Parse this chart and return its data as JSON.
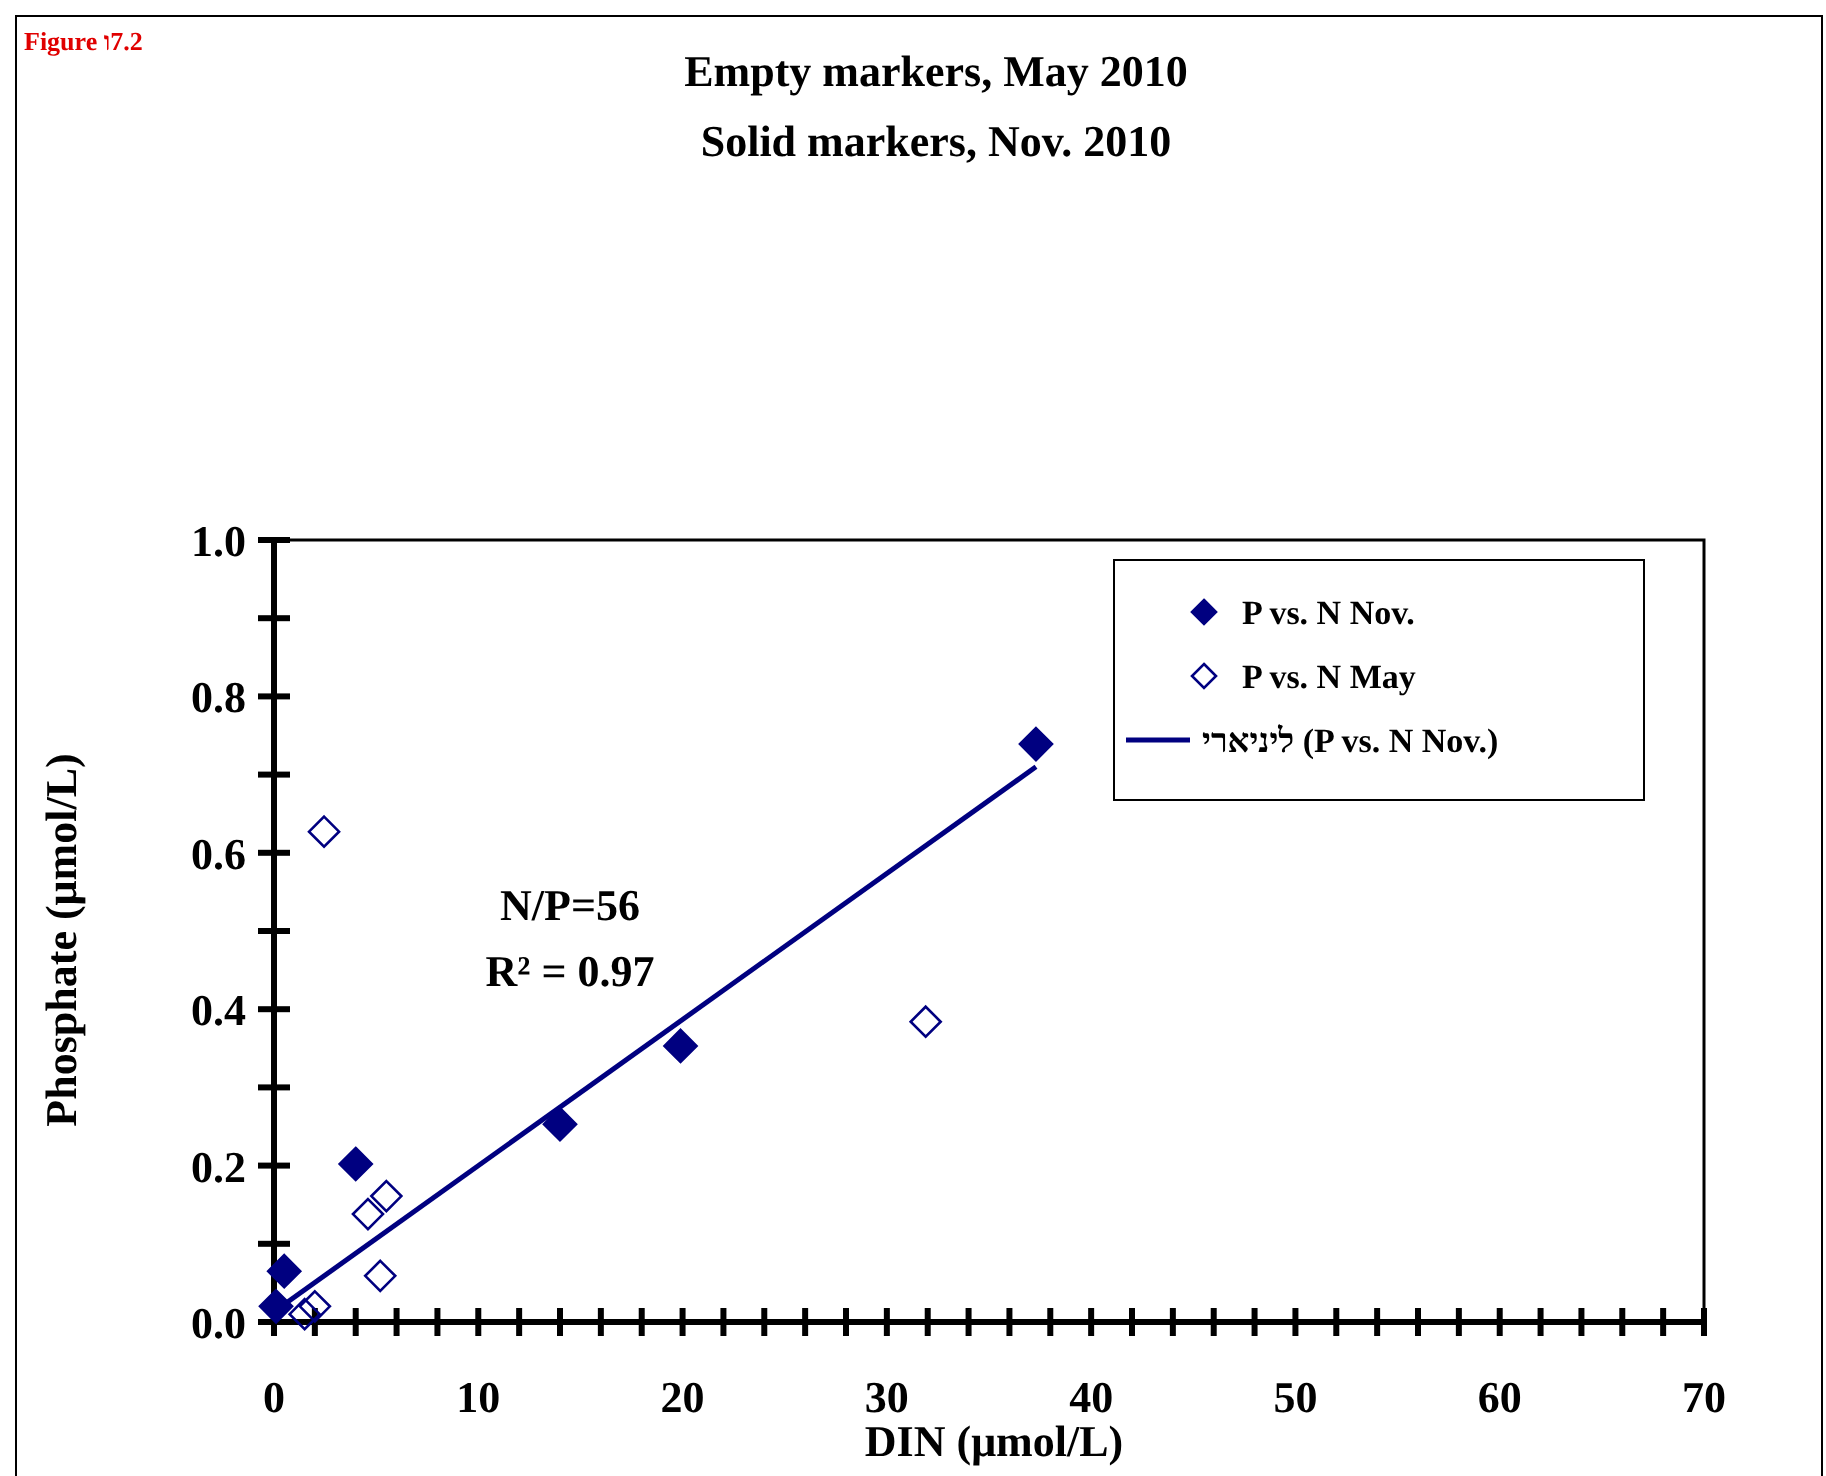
{
  "chart_data": {
    "type": "scatter",
    "title": "Empty markers, May 2010",
    "subtitle": "Solid markers, Nov. 2010",
    "xlabel": "DIN (μmol/L)",
    "ylabel": "Phosphate (μmol/L)",
    "annotations": [
      "Figure ו7.2",
      "N/P=56",
      "R² = 0.97"
    ],
    "xlim": [
      0,
      70
    ],
    "ylim": [
      0,
      1
    ],
    "xticks": [
      0,
      {
        "value": 2,
        "label": null
      },
      {
        "value": 4,
        "label": null
      },
      {
        "value": 6,
        "label": null
      },
      {
        "value": 8,
        "label": null
      },
      10,
      {
        "value": 12,
        "label": null
      },
      {
        "value": 14,
        "label": null
      },
      {
        "value": 16,
        "label": null
      },
      {
        "value": 18,
        "label": null
      },
      20,
      {
        "value": 22,
        "label": null
      },
      {
        "value": 24,
        "label": null
      },
      {
        "value": 26,
        "label": null
      },
      {
        "value": 28,
        "label": null
      },
      30,
      {
        "value": 32,
        "label": null
      },
      {
        "value": 34,
        "label": null
      },
      {
        "value": 36,
        "label": null
      },
      {
        "value": 38,
        "label": null
      },
      40,
      {
        "value": 42,
        "label": null
      },
      {
        "value": 44,
        "label": null
      },
      {
        "value": 46,
        "label": null
      },
      {
        "value": 48,
        "label": null
      },
      50,
      {
        "value": 52,
        "label": null
      },
      {
        "value": 54,
        "label": null
      },
      {
        "value": 56,
        "label": null
      },
      {
        "value": 58,
        "label": null
      },
      60,
      {
        "value": 62,
        "label": null
      },
      {
        "value": 64,
        "label": null
      },
      {
        "value": 66,
        "label": null
      },
      {
        "value": 68,
        "label": null
      },
      70
    ],
    "yticks": [
      {
        "value": 0,
        "label": "0.0"
      },
      {
        "value": 0.1,
        "label": null
      },
      {
        "value": 0.2,
        "label": "0.2"
      },
      {
        "value": 0.3,
        "label": null
      },
      {
        "value": 0.4,
        "label": "0.4"
      },
      {
        "value": 0.5,
        "label": null
      },
      {
        "value": 0.6,
        "label": "0.6"
      },
      {
        "value": 0.7,
        "label": null
      },
      {
        "value": 0.8,
        "label": "0.8"
      },
      {
        "value": 0.9,
        "label": null
      },
      {
        "value": 1,
        "label": "1.0"
      }
    ],
    "grid": false,
    "legend": "top right",
    "marker": "diamond",
    "series": [
      {
        "name": "P vs. N Nov.",
        "color": "#000080",
        "x": [
          37.3,
          19.9,
          14.0,
          4.0,
          0.5,
          0.1
        ],
        "values": [
          0.739,
          0.353,
          0.253,
          0.202,
          0.065,
          0.02
        ]
      },
      {
        "name": "P vs. N May",
        "color": "#000080",
        "x": [
          2.45,
          31.9,
          5.5,
          4.6,
          5.2,
          2.0,
          1.5
        ],
        "values": [
          0.627,
          0.384,
          0.161,
          0.138,
          0.059,
          0.02,
          0.01
        ]
      },
      {
        "name": "ליניארי (P vs. N Nov.)",
        "type": "line",
        "color": "#000080",
        "marker": "none",
        "x": [
          0.1,
          37.3
        ],
        "values": [
          0.015,
          0.71
        ]
      }
    ]
  }
}
